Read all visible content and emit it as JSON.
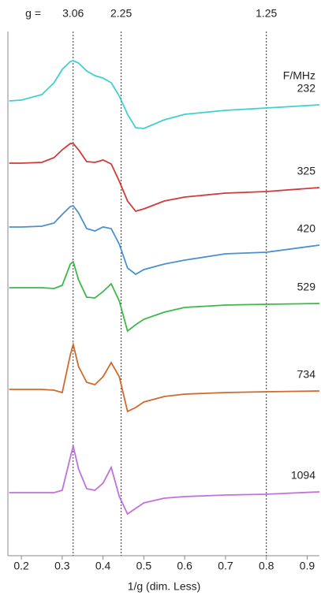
{
  "chart_data": {
    "type": "line",
    "top_axis_label": "g =",
    "gticks": [
      3.06,
      2.25,
      1.25
    ],
    "legend_title": "F/MHz",
    "xlabel": "1/g (dim. Less)",
    "xlim": [
      0.167,
      0.93
    ],
    "xticks": [
      0.2,
      0.3,
      0.4,
      0.5,
      0.6,
      0.7,
      0.8,
      0.9
    ],
    "ylim": [
      0,
      665
    ],
    "x": [
      0.17,
      0.2,
      0.25,
      0.28,
      0.3,
      0.32,
      0.327,
      0.34,
      0.36,
      0.38,
      0.4,
      0.42,
      0.44,
      0.46,
      0.48,
      0.5,
      0.55,
      0.6,
      0.7,
      0.8,
      0.93
    ],
    "series": [
      {
        "name": "232",
        "color": "#3fd0d0",
        "values": [
          577,
          578,
          585,
          600,
          617,
          627,
          628,
          625,
          615,
          609,
          606,
          600,
          583,
          560,
          543,
          542,
          553,
          560,
          565,
          568,
          572
        ]
      },
      {
        "name": "325",
        "color": "#d03a3a",
        "values": [
          498,
          498,
          499,
          505,
          515,
          523,
          523,
          515,
          500,
          499,
          502,
          497,
          475,
          450,
          437,
          440,
          450,
          455,
          460,
          462,
          467
        ]
      },
      {
        "name": "420",
        "color": "#4a90d0",
        "values": [
          417,
          417,
          418,
          422,
          433,
          443,
          444,
          435,
          415,
          412,
          417,
          415,
          395,
          365,
          357,
          363,
          370,
          375,
          383,
          385,
          394
        ]
      },
      {
        "name": "529",
        "color": "#3bba4a",
        "values": [
          340,
          340,
          340,
          339,
          343,
          370,
          373,
          350,
          328,
          327,
          335,
          345,
          323,
          285,
          293,
          300,
          309,
          315,
          318,
          319,
          320
        ]
      },
      {
        "name": "734",
        "color": "#d06a2a",
        "values": [
          211,
          211,
          211,
          210,
          207,
          255,
          268,
          240,
          220,
          217,
          227,
          245,
          227,
          183,
          188,
          195,
          202,
          205,
          207,
          208,
          209
        ]
      },
      {
        "name": "1094",
        "color": "#c070e0",
        "values": [
          80,
          80,
          80,
          80,
          83,
          125,
          139,
          110,
          85,
          83,
          92,
          112,
          75,
          53,
          60,
          67,
          73,
          75,
          77,
          78,
          81
        ]
      }
    ]
  }
}
